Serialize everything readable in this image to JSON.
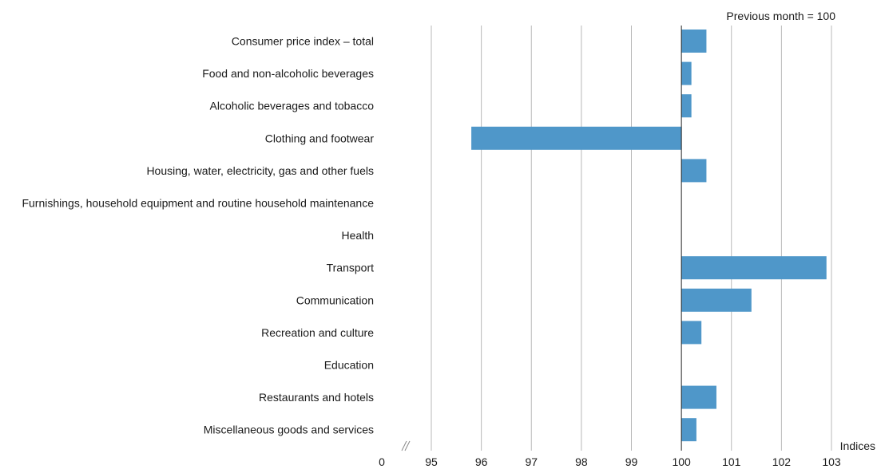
{
  "chart_data": {
    "type": "bar",
    "orientation": "horizontal",
    "unit_note": "Previous month = 100",
    "xlabel": "Indices",
    "baseline": 100,
    "xlim": [
      95,
      103
    ],
    "axis_break": true,
    "axis_start_label": "0",
    "x_ticks": [
      95,
      96,
      97,
      98,
      99,
      100,
      101,
      102,
      103
    ],
    "grid": true,
    "colors": {
      "bar": "#4f97c9",
      "grid": "#b8b8b8",
      "baseline": "#222222"
    },
    "categories": [
      "Consumer price index – total",
      "Food and non-alcoholic beverages",
      "Alcoholic beverages and tobacco",
      "Clothing and footwear",
      "Housing, water, electricity, gas and other fuels",
      "Furnishings, household equipment and routine household maintenance",
      "Health",
      "Transport",
      "Communication",
      "Recreation and culture",
      "Education",
      "Restaurants and hotels",
      "Miscellaneous goods and services"
    ],
    "values": [
      100.5,
      100.2,
      100.2,
      95.8,
      100.5,
      100.0,
      100.0,
      102.9,
      101.4,
      100.4,
      100.0,
      100.7,
      100.3
    ]
  }
}
